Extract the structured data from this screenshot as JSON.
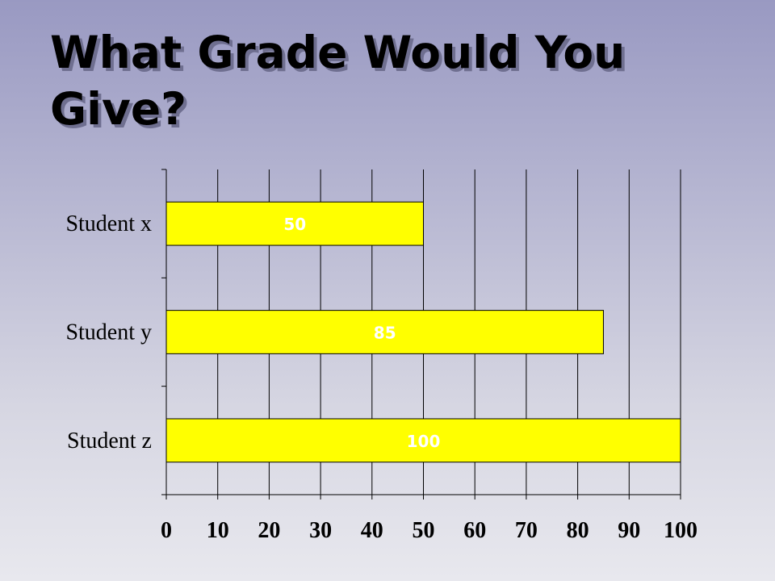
{
  "slide": {
    "title": "What Grade Would You Give?"
  },
  "colors": {
    "bar_fill": "#ffff00",
    "bar_stroke": "#000000",
    "grid": "#000000",
    "data_label": "#ffffff"
  },
  "chart_data": {
    "type": "bar",
    "orientation": "horizontal",
    "categories": [
      "Student x",
      "Student y",
      "Student z"
    ],
    "values": [
      50,
      85,
      100
    ],
    "data_labels": [
      "50",
      "85",
      "100"
    ],
    "xlim": [
      0,
      100
    ],
    "x_ticks": [
      0,
      10,
      20,
      30,
      40,
      50,
      60,
      70,
      80,
      90,
      100
    ],
    "x_tick_labels": [
      "0",
      "10",
      "20",
      "30",
      "40",
      "50",
      "60",
      "70",
      "80",
      "90",
      "100"
    ],
    "grid": true,
    "legend": "none"
  }
}
